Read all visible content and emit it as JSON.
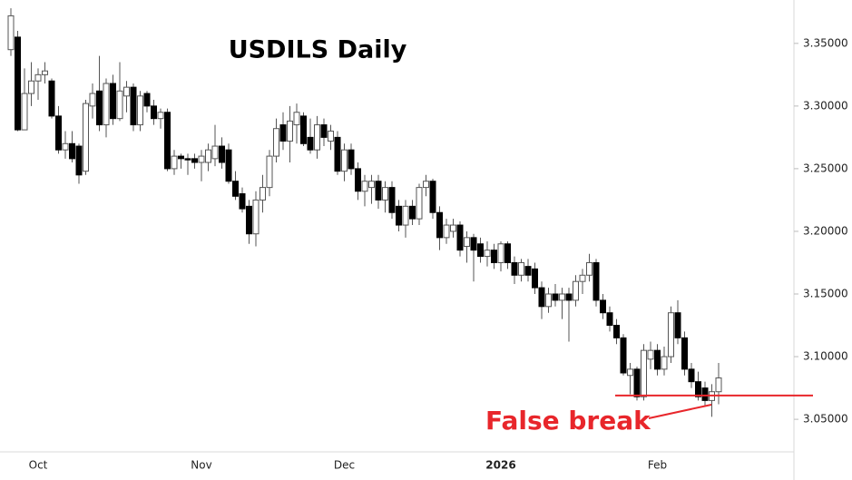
{
  "chart_data": {
    "type": "candlestick",
    "title": "USDILS Daily",
    "categories": [
      null,
      null,
      null,
      null,
      "Oct",
      null,
      null,
      null,
      null,
      null,
      null,
      null,
      null,
      null,
      null,
      null,
      null,
      null,
      null,
      null,
      null,
      null,
      null,
      null,
      null,
      null,
      null,
      null,
      "Nov",
      null,
      null,
      null,
      null,
      null,
      null,
      null,
      null,
      null,
      null,
      null,
      null,
      null,
      null,
      null,
      null,
      null,
      null,
      null,
      null,
      "Dec",
      null,
      null,
      null,
      null,
      null,
      null,
      null,
      null,
      null,
      null,
      null,
      null,
      null,
      null,
      null,
      null,
      null,
      null,
      null,
      null,
      null,
      null,
      "2026",
      null,
      null,
      null,
      null,
      null,
      null,
      null,
      null,
      null,
      null,
      null,
      null,
      null,
      null,
      null,
      null,
      null,
      null,
      null,
      null,
      null,
      null,
      "Feb",
      null,
      null,
      null,
      null,
      null,
      null,
      null,
      null,
      null
    ],
    "candles": [
      [
        3.345,
        3.378,
        3.34,
        3.372
      ],
      [
        3.355,
        3.36,
        3.28,
        3.281
      ],
      [
        3.281,
        3.33,
        3.281,
        3.31
      ],
      [
        3.31,
        3.335,
        3.3,
        3.32
      ],
      [
        3.32,
        3.33,
        3.305,
        3.325
      ],
      [
        3.325,
        3.335,
        3.318,
        3.328
      ],
      [
        3.32,
        3.322,
        3.29,
        3.292
      ],
      [
        3.292,
        3.3,
        3.262,
        3.265
      ],
      [
        3.265,
        3.28,
        3.258,
        3.27
      ],
      [
        3.27,
        3.28,
        3.255,
        3.258
      ],
      [
        3.268,
        3.27,
        3.238,
        3.245
      ],
      [
        3.248,
        3.305,
        3.245,
        3.302
      ],
      [
        3.3,
        3.318,
        3.29,
        3.31
      ],
      [
        3.312,
        3.34,
        3.28,
        3.285
      ],
      [
        3.285,
        3.322,
        3.275,
        3.318
      ],
      [
        3.318,
        3.325,
        3.285,
        3.29
      ],
      [
        3.29,
        3.335,
        3.288,
        3.312
      ],
      [
        3.308,
        3.32,
        3.295,
        3.315
      ],
      [
        3.315,
        3.318,
        3.28,
        3.285
      ],
      [
        3.285,
        3.312,
        3.28,
        3.308
      ],
      [
        3.31,
        3.312,
        3.295,
        3.3
      ],
      [
        3.3,
        3.305,
        3.285,
        3.29
      ],
      [
        3.29,
        3.298,
        3.282,
        3.295
      ],
      [
        3.295,
        3.298,
        3.248,
        3.25
      ],
      [
        3.25,
        3.265,
        3.245,
        3.26
      ],
      [
        3.26,
        3.262,
        3.25,
        3.258
      ],
      [
        3.258,
        3.262,
        3.245,
        3.257
      ],
      [
        3.258,
        3.262,
        3.25,
        3.255
      ],
      [
        3.255,
        3.265,
        3.24,
        3.26
      ],
      [
        3.255,
        3.27,
        3.248,
        3.265
      ],
      [
        3.258,
        3.285,
        3.252,
        3.268
      ],
      [
        3.268,
        3.275,
        3.25,
        3.255
      ],
      [
        3.265,
        3.27,
        3.238,
        3.24
      ],
      [
        3.24,
        3.248,
        3.225,
        3.228
      ],
      [
        3.23,
        3.235,
        3.215,
        3.218
      ],
      [
        3.22,
        3.225,
        3.19,
        3.198
      ],
      [
        3.198,
        3.232,
        3.188,
        3.225
      ],
      [
        3.225,
        3.245,
        3.215,
        3.235
      ],
      [
        3.235,
        3.265,
        3.228,
        3.26
      ],
      [
        3.26,
        3.29,
        3.255,
        3.282
      ],
      [
        3.285,
        3.295,
        3.265,
        3.272
      ],
      [
        3.272,
        3.3,
        3.255,
        3.288
      ],
      [
        3.285,
        3.302,
        3.27,
        3.295
      ],
      [
        3.292,
        3.295,
        3.268,
        3.27
      ],
      [
        3.275,
        3.29,
        3.262,
        3.265
      ],
      [
        3.265,
        3.292,
        3.258,
        3.285
      ],
      [
        3.285,
        3.29,
        3.268,
        3.275
      ],
      [
        3.272,
        3.285,
        3.265,
        3.28
      ],
      [
        3.275,
        3.28,
        3.245,
        3.248
      ],
      [
        3.248,
        3.27,
        3.24,
        3.265
      ],
      [
        3.265,
        3.27,
        3.245,
        3.25
      ],
      [
        3.25,
        3.255,
        3.225,
        3.232
      ],
      [
        3.232,
        3.245,
        3.22,
        3.24
      ],
      [
        3.235,
        3.245,
        3.222,
        3.24
      ],
      [
        3.24,
        3.245,
        3.218,
        3.225
      ],
      [
        3.225,
        3.24,
        3.215,
        3.235
      ],
      [
        3.235,
        3.24,
        3.21,
        3.215
      ],
      [
        3.22,
        3.225,
        3.2,
        3.205
      ],
      [
        3.205,
        3.225,
        3.195,
        3.22
      ],
      [
        3.22,
        3.225,
        3.205,
        3.21
      ],
      [
        3.21,
        3.238,
        3.205,
        3.235
      ],
      [
        3.235,
        3.245,
        3.228,
        3.24
      ],
      [
        3.24,
        3.242,
        3.21,
        3.215
      ],
      [
        3.215,
        3.22,
        3.185,
        3.195
      ],
      [
        3.195,
        3.21,
        3.19,
        3.205
      ],
      [
        3.2,
        3.21,
        3.195,
        3.205
      ],
      [
        3.205,
        3.208,
        3.18,
        3.185
      ],
      [
        3.188,
        3.2,
        3.175,
        3.195
      ],
      [
        3.195,
        3.198,
        3.16,
        3.185
      ],
      [
        3.19,
        3.195,
        3.175,
        3.18
      ],
      [
        3.18,
        3.192,
        3.172,
        3.185
      ],
      [
        3.185,
        3.19,
        3.17,
        3.175
      ],
      [
        3.175,
        3.192,
        3.168,
        3.19
      ],
      [
        3.19,
        3.192,
        3.17,
        3.175
      ],
      [
        3.175,
        3.18,
        3.158,
        3.165
      ],
      [
        3.165,
        3.178,
        3.16,
        3.175
      ],
      [
        3.172,
        3.178,
        3.16,
        3.165
      ],
      [
        3.17,
        3.175,
        3.15,
        3.155
      ],
      [
        3.155,
        3.16,
        3.13,
        3.14
      ],
      [
        3.14,
        3.155,
        3.135,
        3.15
      ],
      [
        3.15,
        3.158,
        3.14,
        3.145
      ],
      [
        3.145,
        3.155,
        3.13,
        3.15
      ],
      [
        3.15,
        3.155,
        3.112,
        3.145
      ],
      [
        3.145,
        3.165,
        3.14,
        3.16
      ],
      [
        3.16,
        3.17,
        3.15,
        3.165
      ],
      [
        3.165,
        3.182,
        3.16,
        3.175
      ],
      [
        3.175,
        3.178,
        3.14,
        3.145
      ],
      [
        3.145,
        3.15,
        3.13,
        3.135
      ],
      [
        3.135,
        3.14,
        3.12,
        3.125
      ],
      [
        3.125,
        3.13,
        3.11,
        3.115
      ],
      [
        3.115,
        3.118,
        3.085,
        3.087
      ],
      [
        3.085,
        3.095,
        3.07,
        3.09
      ],
      [
        3.09,
        3.092,
        3.065,
        3.068
      ],
      [
        3.068,
        3.11,
        3.065,
        3.105
      ],
      [
        3.098,
        3.112,
        3.09,
        3.105
      ],
      [
        3.105,
        3.11,
        3.085,
        3.09
      ],
      [
        3.09,
        3.108,
        3.085,
        3.1
      ],
      [
        3.1,
        3.14,
        3.095,
        3.135
      ],
      [
        3.135,
        3.145,
        3.11,
        3.115
      ],
      [
        3.115,
        3.12,
        3.085,
        3.09
      ],
      [
        3.09,
        3.095,
        3.075,
        3.08
      ],
      [
        3.08,
        3.088,
        3.065,
        3.068
      ],
      [
        3.075,
        3.08,
        3.06,
        3.065
      ],
      [
        3.065,
        3.078,
        3.052,
        3.072
      ],
      [
        3.072,
        3.095,
        3.062,
        3.083
      ]
    ],
    "up_color": "#ffffff",
    "down_color": "#000000",
    "wick_color": "#555555",
    "ylim": [
      3.024,
      3.381
    ],
    "yticks": [
      {
        "value": 3.05,
        "label": "3.05000"
      },
      {
        "value": 3.1,
        "label": "3.10000"
      },
      {
        "value": 3.15,
        "label": "3.15000"
      },
      {
        "value": 3.2,
        "label": "3.20000"
      },
      {
        "value": 3.25,
        "label": "3.25000"
      },
      {
        "value": 3.3,
        "label": "3.30000"
      },
      {
        "value": 3.35,
        "label": "3.35000"
      }
    ],
    "grid": false,
    "annotation": {
      "text": "False break",
      "level": 3.069,
      "color": "#e8262b"
    }
  }
}
